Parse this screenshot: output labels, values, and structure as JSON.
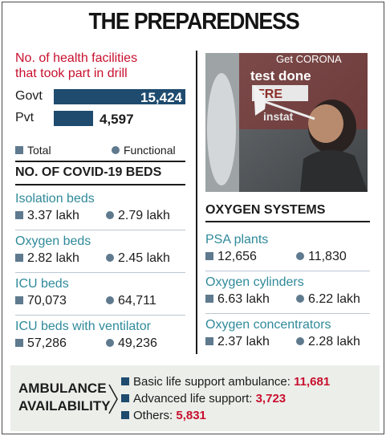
{
  "title": "THE PREPAREDNESS",
  "drill": {
    "heading_line1": "No. of health facilities",
    "heading_line2": "that took part in drill"
  },
  "legend": {
    "total": "Total",
    "functional": "Functional"
  },
  "beds_heading": "NO. OF COVID-19 BEDS",
  "oxygen_heading": "OXYGEN SYSTEMS",
  "photo": {
    "sign_text": "test done"
  },
  "ambulance": {
    "title_line1": "AMBULANCE",
    "title_line2": "AVAILABILITY",
    "items": [
      {
        "label": "Basic life support ambulance:",
        "value": "11,681"
      },
      {
        "label": "Advanced life support:",
        "value": "3,723"
      },
      {
        "label": "Others:",
        "value": "5,831"
      }
    ]
  },
  "colors": {
    "bar": "#1e4b6e",
    "marker": "#5f7a8e",
    "red": "#c8102e",
    "teal": "#2f8a9a",
    "panel": "#eceeea"
  },
  "chart_data": [
    {
      "type": "bar",
      "title": "No. of health facilities that took part in drill",
      "categories": [
        "Govt",
        "Pvt"
      ],
      "values": [
        15424,
        4597
      ],
      "value_labels": [
        "15,424",
        "4,597"
      ]
    },
    {
      "type": "table",
      "title": "NO. OF COVID-19 BEDS",
      "columns": [
        "Total",
        "Functional"
      ],
      "rows": [
        {
          "label": "Isolation beds",
          "total": "3.37 lakh",
          "functional": "2.79 lakh"
        },
        {
          "label": "Oxygen beds",
          "total": "2.82 lakh",
          "functional": "2.45 lakh"
        },
        {
          "label": "ICU beds",
          "total": "70,073",
          "functional": "64,711"
        },
        {
          "label": "ICU beds with ventilator",
          "total": "57,286",
          "functional": "49,236"
        }
      ]
    },
    {
      "type": "table",
      "title": "OXYGEN SYSTEMS",
      "columns": [
        "Total",
        "Functional"
      ],
      "rows": [
        {
          "label": "PSA plants",
          "total": "12,656",
          "functional": "11,830"
        },
        {
          "label": "Oxygen cylinders",
          "total": "6.63 lakh",
          "functional": "6.22 lakh"
        },
        {
          "label": "Oxygen concentrators",
          "total": "2.37 lakh",
          "functional": "2.28 lakh"
        }
      ]
    }
  ]
}
